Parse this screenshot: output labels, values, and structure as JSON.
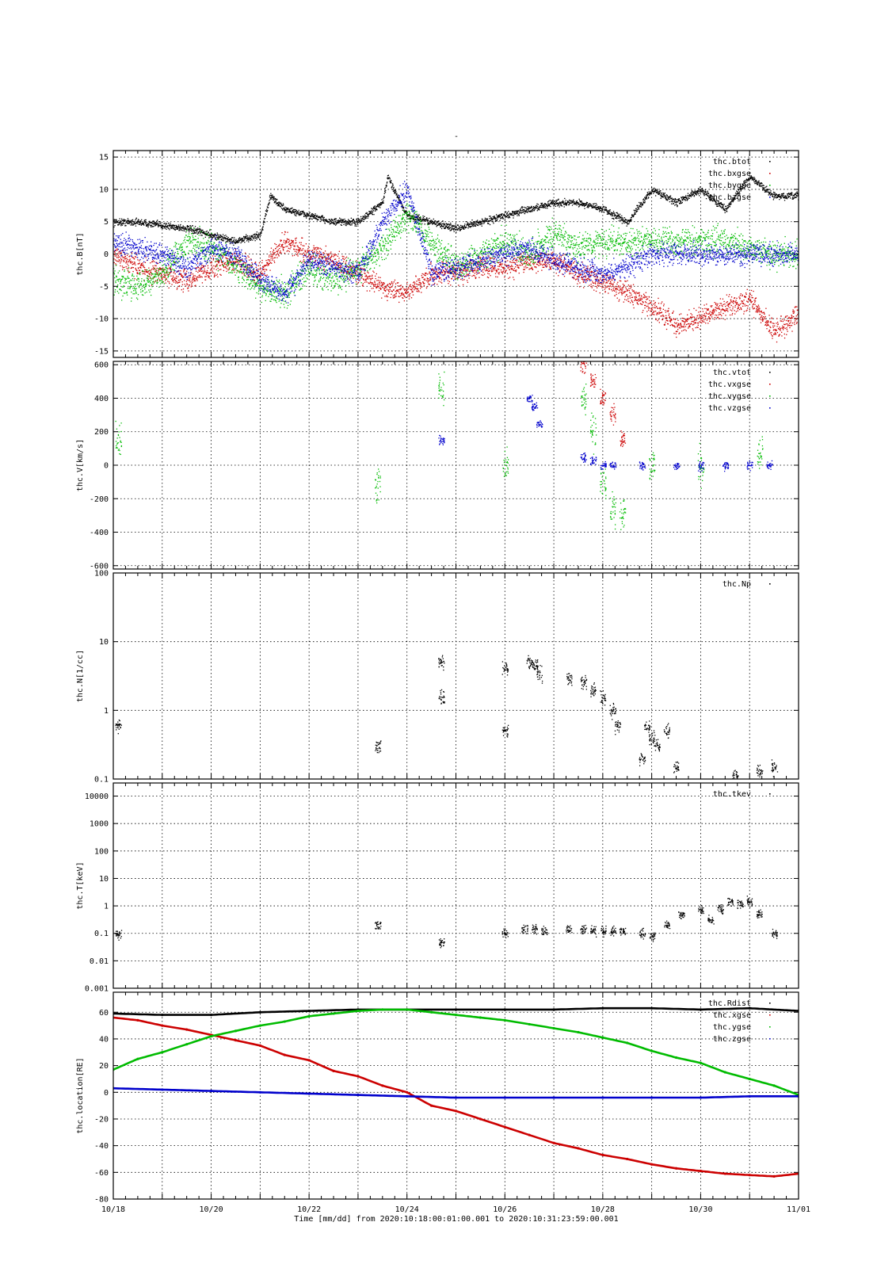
{
  "page": {
    "top_mark": "-"
  },
  "xaxis": {
    "tick_labels": [
      "10/18",
      "10/20",
      "10/22",
      "10/24",
      "10/26",
      "10/28",
      "10/30",
      "11/01"
    ],
    "tick_days": [
      0,
      2,
      4,
      6,
      8,
      10,
      12,
      14
    ],
    "range_days": [
      0,
      14
    ],
    "label": "Time [mm/dd]  from 2020:10:18:00:01:00.001  to  2020:10:31:23:59:00.001"
  },
  "chart_data": [
    {
      "type": "scatter",
      "ylabel": "thc.B[nT]",
      "scale": "linear",
      "ylim": [
        -16,
        16
      ],
      "yticks": [
        -15,
        -10,
        -5,
        0,
        5,
        10,
        15
      ],
      "ytick_labels": [
        "-15",
        "-10",
        "-5",
        "0",
        "5",
        "10",
        "15"
      ],
      "legend_position": "top-right",
      "series": [
        {
          "name": "thc.btot",
          "color": "#000000",
          "noise": 0.5,
          "x": [
            0,
            0.5,
            1,
            1.5,
            2,
            2.5,
            3,
            3.2,
            3.5,
            4,
            4.5,
            5,
            5.5,
            5.6,
            6,
            6.5,
            7,
            7.5,
            8,
            8.5,
            9,
            9.5,
            10,
            10.5,
            11,
            11.5,
            12,
            12.5,
            13,
            13.5,
            14
          ],
          "y": [
            5,
            5,
            4.5,
            4,
            3,
            2,
            3,
            9,
            7,
            6,
            5,
            5,
            8,
            12,
            6,
            5,
            4,
            5,
            6,
            7,
            8,
            8,
            7,
            5,
            10,
            8,
            10,
            7,
            12,
            9,
            9
          ]
        },
        {
          "name": "thc.bxgse",
          "color": "#cc0000",
          "noise": 1.5,
          "x": [
            0,
            0.5,
            1,
            1.5,
            2,
            2.5,
            3,
            3.5,
            4,
            4.5,
            5,
            5.5,
            6,
            6.5,
            7,
            7.5,
            8,
            8.5,
            9,
            9.5,
            10,
            10.5,
            11,
            11.5,
            12,
            12.5,
            13,
            13.5,
            14
          ],
          "y": [
            0,
            -2,
            -3,
            -4,
            -2,
            -1,
            -3,
            2,
            0,
            -1,
            -3,
            -5,
            -6,
            -3,
            -3,
            -2,
            -2,
            -1,
            -1,
            -3,
            -4,
            -6,
            -8,
            -11,
            -10,
            -8,
            -7,
            -12,
            -9
          ]
        },
        {
          "name": "thc.bygse",
          "color": "#00bb00",
          "noise": 2,
          "x": [
            0,
            0.5,
            1,
            1.5,
            2,
            2.5,
            3,
            3.5,
            4,
            4.5,
            5,
            5.5,
            6,
            6.5,
            7,
            7.5,
            8,
            8.5,
            9,
            9.5,
            10,
            10.5,
            11,
            11.5,
            12,
            12.5,
            13,
            13.5,
            14
          ],
          "y": [
            -4,
            -5,
            -3,
            2,
            1,
            -2,
            -5,
            -6,
            -2,
            -4,
            -2,
            1,
            6,
            2,
            -2,
            0,
            2,
            0,
            3,
            1,
            2,
            2,
            2,
            2,
            2,
            2,
            1,
            0,
            0
          ]
        },
        {
          "name": "thc.bzgse",
          "color": "#0000cc",
          "noise": 1.5,
          "x": [
            0,
            0.5,
            1,
            1.5,
            2,
            2.5,
            3,
            3.5,
            4,
            4.5,
            5,
            5.5,
            6,
            6.5,
            7,
            7.5,
            8,
            8.5,
            9,
            9.5,
            10,
            10.5,
            11,
            11.5,
            12,
            12.5,
            13,
            13.5,
            14
          ],
          "y": [
            2,
            1,
            0,
            -2,
            1,
            0,
            -4,
            -6,
            -1,
            -2,
            -3,
            5,
            10,
            -3,
            -2,
            -1,
            0,
            1,
            -1,
            -2,
            -3,
            -2,
            0,
            0,
            0,
            0,
            0,
            0,
            0
          ]
        }
      ]
    },
    {
      "type": "scatter",
      "ylabel": "thc.V[km/s]",
      "scale": "linear",
      "ylim": [
        -620,
        620
      ],
      "yticks": [
        -600,
        -400,
        -200,
        0,
        200,
        400,
        600
      ],
      "ytick_labels": [
        "-600",
        "-400",
        "-200",
        "0",
        "200",
        "400",
        "600"
      ],
      "legend_position": "top-right",
      "series": [
        {
          "name": "thc.vtot",
          "color": "#000000",
          "noise": 0,
          "x": [],
          "y": []
        },
        {
          "name": "thc.vxgse",
          "color": "#cc0000",
          "noise": 80,
          "x": [
            9.6,
            9.8,
            10,
            10.2,
            10.4
          ],
          "y": [
            600,
            500,
            400,
            300,
            150
          ]
        },
        {
          "name": "thc.vygse",
          "color": "#00bb00",
          "noise": 150,
          "x": [
            0.1,
            5.4,
            6.7,
            8,
            9.6,
            9.8,
            10,
            10.2,
            10.4,
            11,
            12,
            13.2
          ],
          "y": [
            150,
            -100,
            450,
            0,
            400,
            200,
            -100,
            -250,
            -300,
            0,
            0,
            50
          ]
        },
        {
          "name": "thc.vzgse",
          "color": "#0000cc",
          "noise": 40,
          "x": [
            6.7,
            8.5,
            8.6,
            8.7,
            9.6,
            9.8,
            10,
            10.2,
            10.8,
            11.5,
            12,
            12.5,
            13,
            13.4
          ],
          "y": [
            150,
            400,
            350,
            250,
            50,
            30,
            0,
            0,
            0,
            0,
            0,
            0,
            0,
            0
          ]
        }
      ]
    },
    {
      "type": "scatter",
      "ylabel": "thc.N[1/cc]",
      "scale": "log",
      "ylim": [
        0.1,
        100
      ],
      "yticks": [
        0.1,
        1,
        10,
        100
      ],
      "ytick_labels": [
        "0.1",
        "1",
        "10",
        "100"
      ],
      "legend_position": "top-right",
      "series": [
        {
          "name": "thc.Np",
          "color": "#000000",
          "noise": 0.15,
          "x": [
            0.1,
            5.4,
            6.7,
            6.7,
            8,
            8,
            8.5,
            8.6,
            8.7,
            9.3,
            9.6,
            9.8,
            10,
            10.2,
            10.3,
            10.8,
            10.9,
            11,
            11.1,
            11.3,
            11.5,
            12.7,
            13.2,
            13.5
          ],
          "y": [
            0.6,
            0.3,
            5,
            1.5,
            0.5,
            4,
            5,
            4.5,
            3.5,
            3,
            2.5,
            2,
            1.5,
            1,
            0.6,
            0.2,
            0.6,
            0.4,
            0.3,
            0.5,
            0.15,
            0.11,
            0.13,
            0.15
          ]
        }
      ]
    },
    {
      "type": "scatter",
      "ylabel": "thc.T[keV]",
      "scale": "log",
      "ylim": [
        0.001,
        30000
      ],
      "yticks": [
        0.001,
        0.01,
        0.1,
        1,
        10,
        100,
        1000,
        10000
      ],
      "ytick_labels": [
        "0.001",
        "0.01",
        "0.1",
        "1",
        "10",
        "100",
        "1000",
        "10000"
      ],
      "legend_position": "top-right",
      "series": [
        {
          "name": "thc.tkev",
          "color": "#000000",
          "noise": 0.25,
          "x": [
            0.1,
            5.4,
            6.7,
            8,
            8.4,
            8.6,
            8.8,
            9.3,
            9.6,
            9.8,
            10,
            10.2,
            10.4,
            10.8,
            11,
            11.3,
            11.6,
            12,
            12.2,
            12.4,
            12.6,
            12.8,
            13,
            13.2,
            13.5
          ],
          "y": [
            0.1,
            0.2,
            0.05,
            0.1,
            0.15,
            0.15,
            0.13,
            0.14,
            0.14,
            0.13,
            0.13,
            0.12,
            0.12,
            0.1,
            0.08,
            0.2,
            0.5,
            0.7,
            0.3,
            0.8,
            1.5,
            1.2,
            1.5,
            0.5,
            0.1
          ]
        }
      ]
    },
    {
      "type": "line",
      "ylabel": "thc.location[RE]",
      "scale": "linear",
      "ylim": [
        -80,
        75
      ],
      "yticks": [
        -80,
        -60,
        -40,
        -20,
        0,
        20,
        40,
        60
      ],
      "ytick_labels": [
        "-80",
        "-60",
        "-40",
        "-20",
        "0",
        "20",
        "40",
        "60"
      ],
      "legend_position": "top-right",
      "series": [
        {
          "name": "thc.Rdist",
          "color": "#000000",
          "noise": 0,
          "x": [
            0,
            1,
            2,
            3,
            4,
            5,
            6,
            7,
            8,
            9,
            10,
            11,
            12,
            13,
            14
          ],
          "y": [
            59,
            58,
            58,
            60,
            61,
            62,
            62,
            62,
            62,
            62,
            63,
            63,
            62,
            63,
            61
          ]
        },
        {
          "name": "thc.xgse",
          "color": "#cc0000",
          "noise": 0,
          "x": [
            0,
            0.5,
            1,
            1.5,
            2,
            2.5,
            3,
            3.5,
            4,
            4.5,
            5,
            5.5,
            6,
            6.5,
            7,
            7.5,
            8,
            8.5,
            9,
            9.5,
            10,
            10.5,
            11,
            11.5,
            12,
            12.5,
            13,
            13.5,
            14
          ],
          "y": [
            56,
            54,
            50,
            47,
            43,
            39,
            35,
            28,
            24,
            16,
            12,
            5,
            0,
            -10,
            -14,
            -20,
            -26,
            -32,
            -38,
            -42,
            -47,
            -50,
            -54,
            -57,
            -59,
            -61,
            -62,
            -63,
            -61
          ]
        },
        {
          "name": "thc.ygse",
          "color": "#00bb00",
          "noise": 0,
          "x": [
            0,
            0.5,
            1,
            1.5,
            2,
            2.5,
            3,
            3.5,
            4,
            4.5,
            5,
            5.5,
            6,
            6.5,
            7,
            7.5,
            8,
            8.5,
            9,
            9.5,
            10,
            10.5,
            11,
            11.5,
            12,
            12.5,
            13,
            13.5,
            14
          ],
          "y": [
            17,
            25,
            30,
            36,
            42,
            46,
            50,
            53,
            57,
            59,
            61,
            62,
            62,
            60,
            58,
            56,
            54,
            51,
            48,
            45,
            41,
            37,
            31,
            26,
            22,
            15,
            10,
            5,
            -2
          ]
        },
        {
          "name": "thc.zgse",
          "color": "#0000cc",
          "noise": 0,
          "x": [
            0,
            1,
            2,
            3,
            4,
            5,
            6,
            7,
            8,
            9,
            10,
            11,
            12,
            13,
            14
          ],
          "y": [
            3,
            2,
            1,
            0,
            -1,
            -2,
            -3,
            -4,
            -4,
            -4,
            -4,
            -4,
            -4,
            -3,
            -3
          ]
        }
      ]
    }
  ]
}
